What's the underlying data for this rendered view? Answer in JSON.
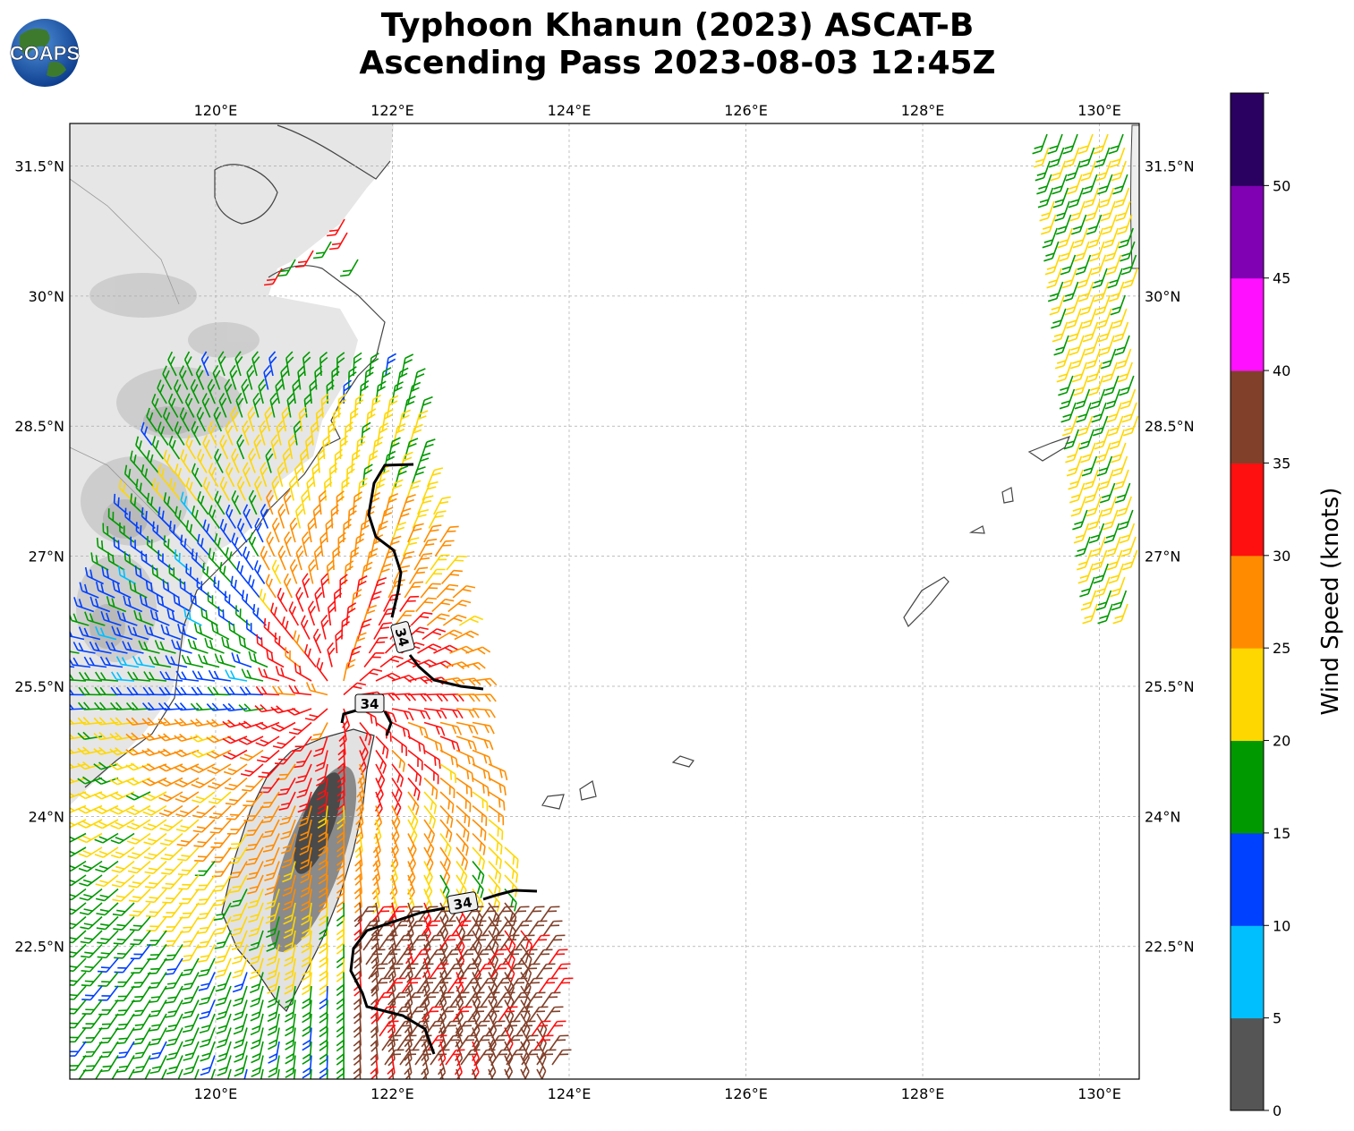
{
  "title": {
    "line1": "Typhoon Khanun (2023) ASCAT-B",
    "line2": "Ascending Pass 2023-08-03 12:45Z"
  },
  "logo": {
    "text": "COAPS",
    "icon": "globe-logo-icon"
  },
  "map": {
    "x_ticks": [
      "120°E",
      "122°E",
      "124°E",
      "126°E",
      "128°E",
      "130°E"
    ],
    "y_ticks": [
      "31.5°N",
      "30°N",
      "28.5°N",
      "27°N",
      "25.5°N",
      "24°N",
      "22.5°N"
    ],
    "lon_range": [
      118.35,
      130.45
    ],
    "lat_range": [
      20.97,
      31.99
    ],
    "contour_label": "34",
    "contour_labels": [
      "34",
      "34",
      "34"
    ]
  },
  "colorbar": {
    "label": "Wind Speed (knots)",
    "ticks": [
      "0",
      "5",
      "10",
      "15",
      "20",
      "25",
      "30",
      "35",
      "40",
      "45",
      "50"
    ],
    "colors": [
      "#555555",
      "#00bfff",
      "#0040ff",
      "#009900",
      "#ffd700",
      "#ff8c00",
      "#ff1010",
      "#80402a",
      "#ff10ff",
      "#8000b3",
      "#2a0060"
    ]
  }
}
